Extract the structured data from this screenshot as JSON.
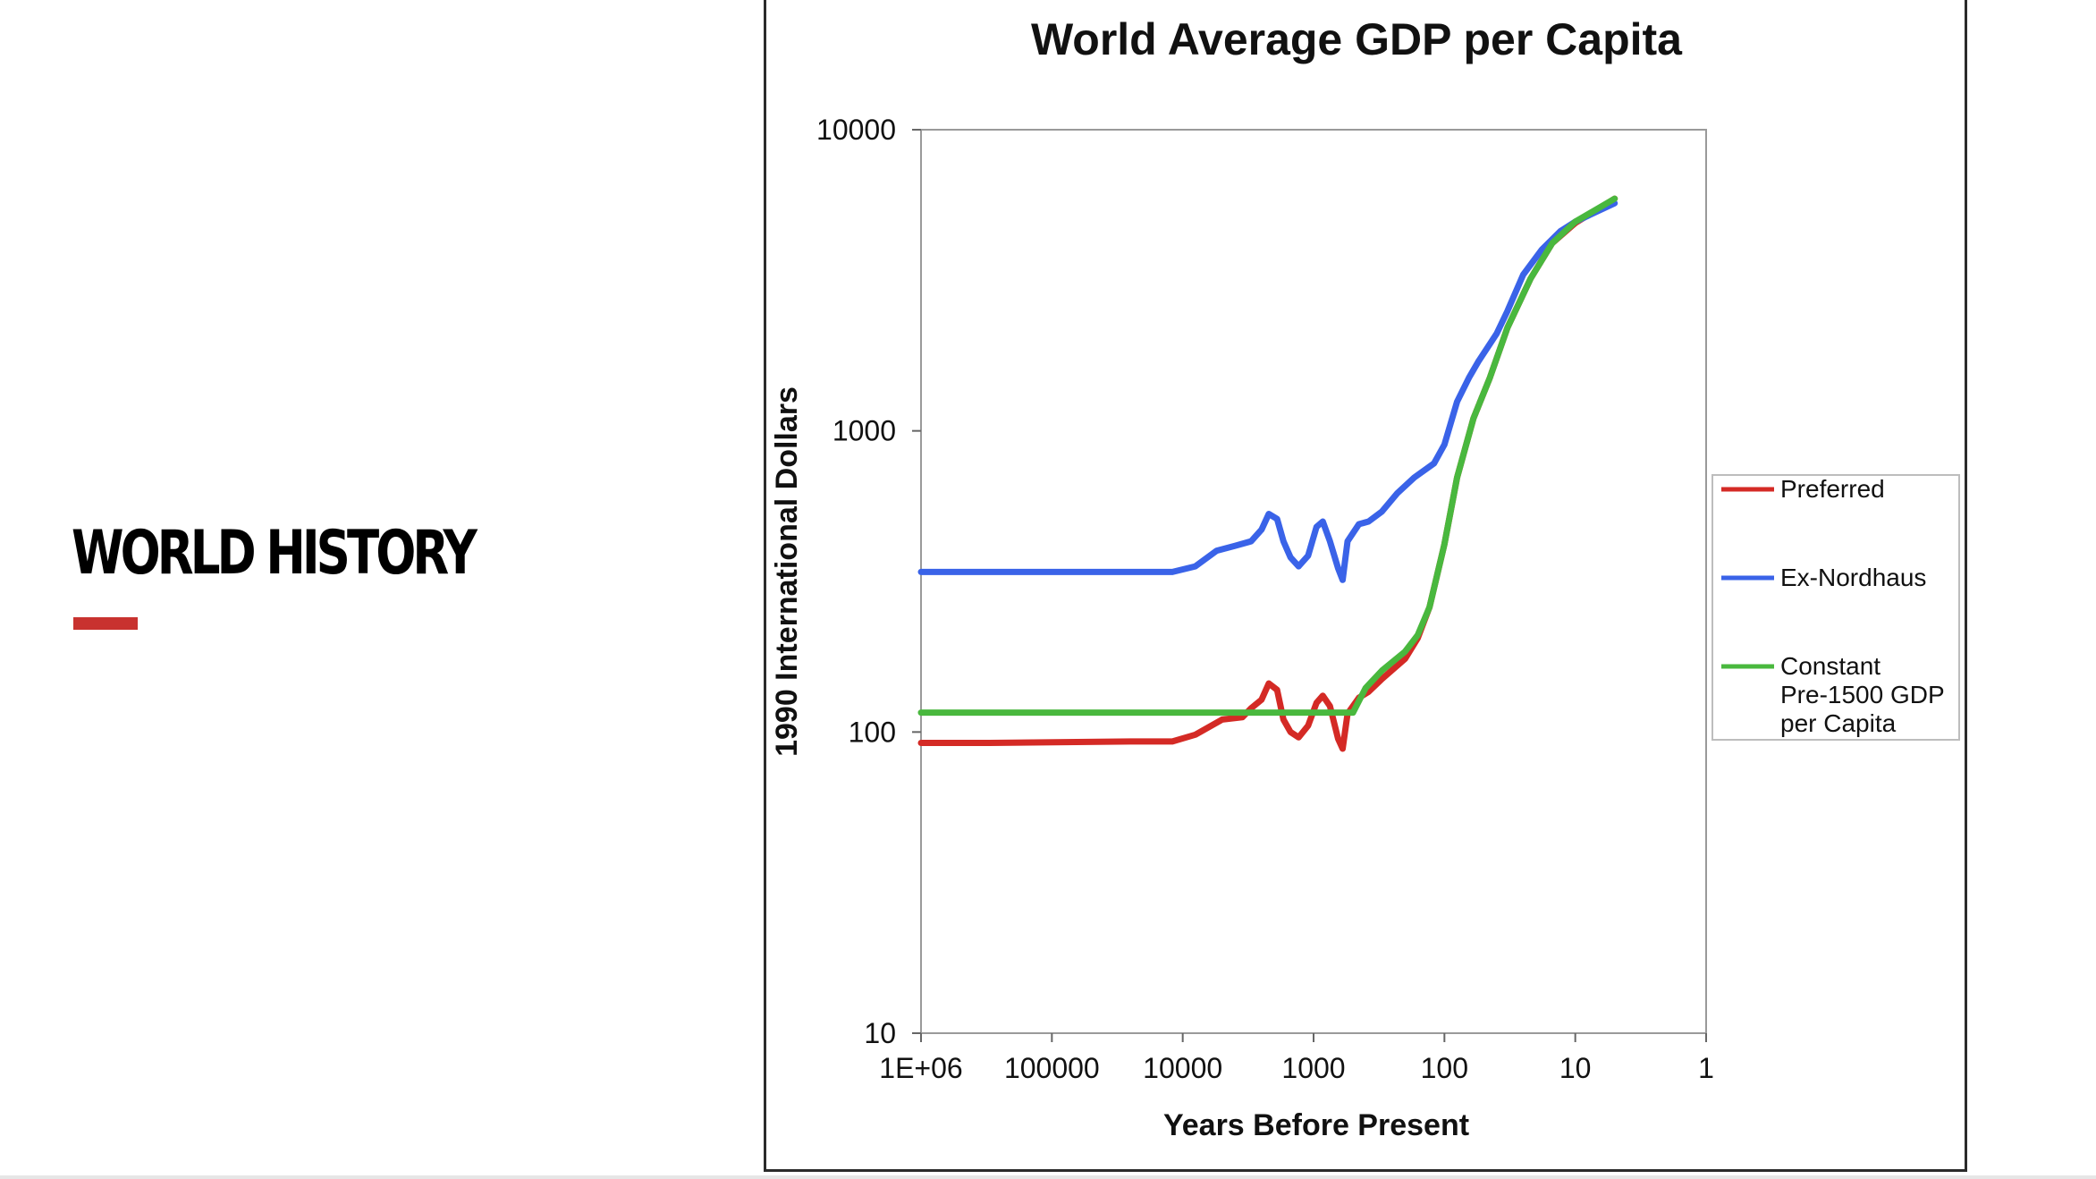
{
  "slide": {
    "title": "World History",
    "accent_color": "#c8322f"
  },
  "chart_data": {
    "type": "line",
    "title": "World Average GDP per Capita",
    "xlabel": "Years Before Present",
    "ylabel": "1990 International Dollars",
    "x_scale": "log-reversed",
    "y_scale": "log",
    "xlim": [
      1000000,
      1
    ],
    "ylim": [
      10,
      10000
    ],
    "x_ticks": [
      1000000,
      100000,
      10000,
      1000,
      100,
      10,
      1
    ],
    "x_tick_labels": [
      "1E+06",
      "100000",
      "10000",
      "1000",
      "100",
      "10",
      "1"
    ],
    "y_ticks": [
      10,
      100,
      1000,
      10000
    ],
    "y_tick_labels": [
      "10",
      "100",
      "1000",
      "10000"
    ],
    "grid": false,
    "legend_position": "right",
    "series": [
      {
        "name": "Preferred",
        "color": "#d42a25",
        "points": [
          [
            1000000,
            92
          ],
          [
            300000,
            92
          ],
          [
            25000,
            93
          ],
          [
            12000,
            93
          ],
          [
            8000,
            98
          ],
          [
            5000,
            110
          ],
          [
            3500,
            112
          ],
          [
            3000,
            120
          ],
          [
            2500,
            128
          ],
          [
            2200,
            145
          ],
          [
            1900,
            138
          ],
          [
            1700,
            110
          ],
          [
            1500,
            100
          ],
          [
            1300,
            96
          ],
          [
            1100,
            105
          ],
          [
            950,
            125
          ],
          [
            850,
            132
          ],
          [
            750,
            122
          ],
          [
            650,
            95
          ],
          [
            600,
            88
          ],
          [
            550,
            115
          ],
          [
            450,
            130
          ],
          [
            380,
            136
          ],
          [
            300,
            150
          ],
          [
            200,
            175
          ],
          [
            160,
            205
          ],
          [
            130,
            260
          ],
          [
            100,
            420
          ],
          [
            80,
            700
          ],
          [
            60,
            1100
          ],
          [
            45,
            1500
          ],
          [
            33,
            2200
          ],
          [
            22,
            3200
          ],
          [
            15,
            4200
          ],
          [
            10,
            4900
          ],
          [
            5,
            5900
          ]
        ]
      },
      {
        "name": "Ex-Nordhaus",
        "color": "#3a63e8",
        "points": [
          [
            1000000,
            340
          ],
          [
            300000,
            340
          ],
          [
            25000,
            340
          ],
          [
            12000,
            340
          ],
          [
            8000,
            355
          ],
          [
            5500,
            400
          ],
          [
            4000,
            415
          ],
          [
            3000,
            430
          ],
          [
            2500,
            470
          ],
          [
            2200,
            530
          ],
          [
            1900,
            510
          ],
          [
            1700,
            430
          ],
          [
            1500,
            380
          ],
          [
            1300,
            355
          ],
          [
            1100,
            385
          ],
          [
            950,
            480
          ],
          [
            850,
            500
          ],
          [
            750,
            430
          ],
          [
            650,
            350
          ],
          [
            600,
            320
          ],
          [
            550,
            430
          ],
          [
            450,
            490
          ],
          [
            380,
            500
          ],
          [
            300,
            540
          ],
          [
            230,
            620
          ],
          [
            170,
            700
          ],
          [
            120,
            780
          ],
          [
            100,
            900
          ],
          [
            80,
            1250
          ],
          [
            65,
            1500
          ],
          [
            55,
            1700
          ],
          [
            40,
            2100
          ],
          [
            33,
            2500
          ],
          [
            25,
            3300
          ],
          [
            18,
            4000
          ],
          [
            13,
            4600
          ],
          [
            10,
            4950
          ],
          [
            5,
            5700
          ]
        ]
      },
      {
        "name": "Constant Pre-1500 GDP per Capita",
        "color": "#49b83e",
        "points": [
          [
            1000000,
            116
          ],
          [
            300000,
            116
          ],
          [
            25000,
            116
          ],
          [
            12000,
            116
          ],
          [
            5000,
            116
          ],
          [
            1000,
            116
          ],
          [
            500,
            116
          ],
          [
            400,
            140
          ],
          [
            300,
            160
          ],
          [
            200,
            185
          ],
          [
            160,
            210
          ],
          [
            130,
            260
          ],
          [
            100,
            420
          ],
          [
            80,
            700
          ],
          [
            60,
            1100
          ],
          [
            45,
            1500
          ],
          [
            33,
            2200
          ],
          [
            22,
            3200
          ],
          [
            15,
            4200
          ],
          [
            10,
            4950
          ],
          [
            5,
            5900
          ]
        ]
      }
    ]
  }
}
